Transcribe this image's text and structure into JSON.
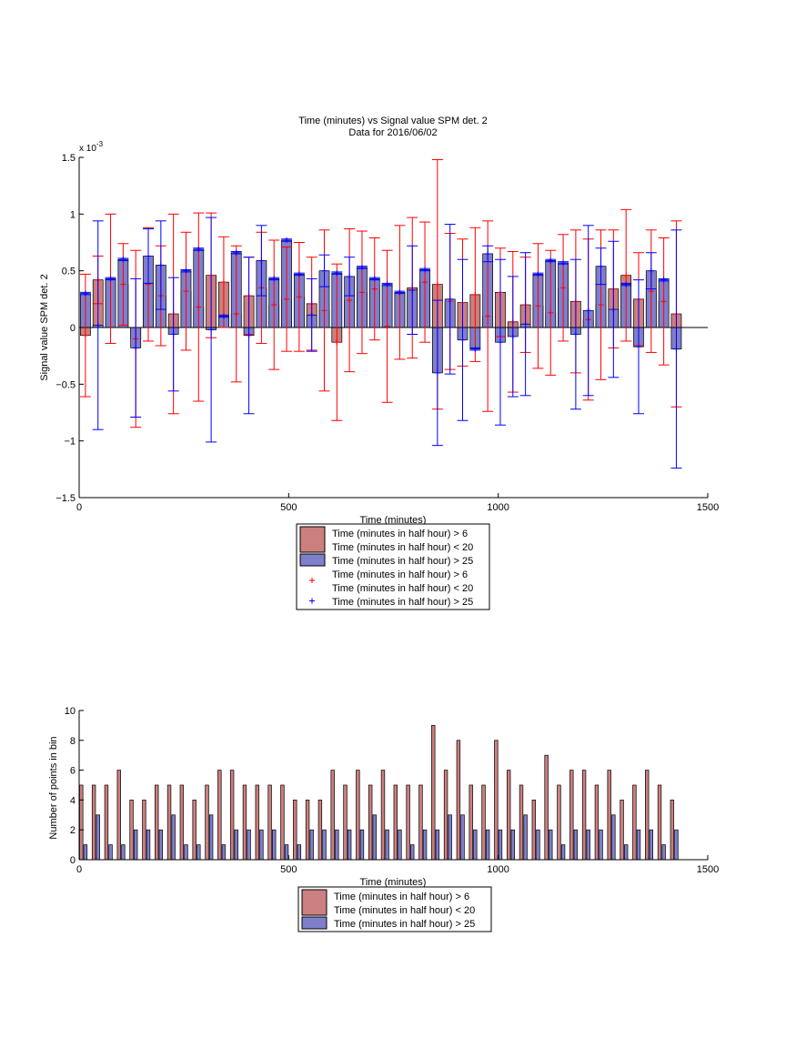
{
  "chart_data": [
    {
      "type": "bar",
      "title": "Time (minutes) vs Signal value SPM det. 2",
      "subtitle": "Data for 2016/06/02",
      "xlabel": "Time (minutes)",
      "ylabel": "Signal value SPM det. 2",
      "exponent_label": "x 10",
      "exponent_power": "-3",
      "xlim": [
        0,
        1500
      ],
      "ylim": [
        -0.0015,
        0.0015
      ],
      "xticks": [
        0,
        500,
        1000,
        1500
      ],
      "xtick_labels": [
        "0",
        "500",
        "1000",
        "1500"
      ],
      "yticks": [
        -0.0015,
        -0.001,
        -0.0005,
        0,
        0.0005,
        0.001,
        0.0015
      ],
      "ytick_labels": [
        "−1.5",
        "−1",
        "−0.5",
        "0",
        "0.5",
        "1",
        "1.5"
      ],
      "grid": false,
      "legend_placement": "below-center",
      "legend": [
        {
          "type": "patch",
          "series": 0,
          "text": [
            "Time (minutes in half hour) > 6",
            "Time (minutes in half hour) < 20"
          ]
        },
        {
          "type": "patch",
          "series": 1,
          "text": [
            "Time (minutes in half hour) > 25"
          ]
        },
        {
          "type": "marker",
          "series": 0,
          "text": [
            "Time (minutes in half hour) > 6",
            "Time (minutes in half hour) < 20"
          ]
        },
        {
          "type": "marker",
          "series": 1,
          "text": [
            "Time (minutes in half hour) > 25"
          ]
        }
      ],
      "x_red": [
        15,
        45,
        75,
        105,
        135,
        165,
        195,
        225,
        255,
        285,
        315,
        345,
        375,
        405,
        435,
        465,
        495,
        525,
        555,
        585,
        615,
        645,
        675,
        705,
        735,
        765,
        795,
        825,
        855,
        885,
        915,
        945,
        975,
        1005,
        1035,
        1065,
        1095,
        1125,
        1155,
        1185,
        1215,
        1245,
        1275,
        1305,
        1335,
        1365,
        1395,
        1425
      ],
      "x_blue": [
        15,
        45,
        75,
        105,
        135,
        165,
        195,
        225,
        255,
        285,
        315,
        345,
        375,
        405,
        435,
        465,
        495,
        525,
        555,
        585,
        615,
        645,
        675,
        705,
        735,
        765,
        795,
        825,
        855,
        885,
        915,
        945,
        975,
        1005,
        1035,
        1065,
        1095,
        1125,
        1155,
        1185,
        1215,
        1245,
        1275,
        1305,
        1335,
        1365,
        1395,
        1425
      ],
      "series": [
        {
          "color": "#cc7f7f",
          "marker_color": "#ff0000",
          "values": [
            -7e-05,
            0.00042,
            0.00043,
            0.00038,
            -0.0001,
            0.00038,
            0.00028,
            0.00012,
            0.00032,
            0.00018,
            0.00046,
            0.0004,
            0.00012,
            0.00028,
            0.00035,
            0.0002,
            0.00025,
            0.00027,
            0.00021,
            0.00015,
            -0.00013,
            0.00024,
            0.00031,
            0.00034,
            1e-05,
            0.00031,
            0.00035,
            0.0004,
            0.00038,
            0.00023,
            0.00022,
            0.00029,
            0.0001,
            0.00031,
            5e-05,
            0.0002,
            0.00019,
            0.00013,
            0.00035,
            0.00023,
            7e-05,
            0.0002,
            0.00034,
            0.00046,
            0.00025,
            0.00032,
            0.00023,
            0.00012
          ],
          "err": [
            0.00054,
            0.00021,
            0.00057,
            0.00036,
            0.00078,
            0.0005,
            0.00044,
            0.00088,
            0.00052,
            0.00083,
            0.00055,
            0.0004,
            0.0006,
            0.00034,
            0.00049,
            0.00057,
            0.00046,
            0.00048,
            0.00041,
            0.00071,
            0.00069,
            0.00063,
            0.00054,
            0.00045,
            0.00067,
            0.00059,
            0.00062,
            0.00053,
            0.0011,
            0.0006,
            0.00056,
            0.00059,
            0.00084,
            0.00039,
            0.00062,
            0.00042,
            0.00055,
            0.00055,
            0.00047,
            0.00063,
            0.00071,
            0.00066,
            0.00052,
            0.00058,
            0.00041,
            0.00054,
            0.00056,
            0.00082
          ]
        },
        {
          "color": "#7f7fcc",
          "marker_color": "#0000ff",
          "values": [
            0.0003,
            2e-05,
            0.00043,
            0.0006,
            -0.00018,
            0.00063,
            0.00055,
            -6e-05,
            0.0005,
            0.00069,
            -2e-05,
            0.0001,
            0.00066,
            -7e-05,
            0.00059,
            0.00043,
            0.00077,
            0.00047,
            0.00011,
            0.0005,
            0.00048,
            0.00045,
            0.00053,
            0.00043,
            0.00038,
            0.00031,
            0.00033,
            0.00051,
            -0.0004,
            0.00025,
            -0.00011,
            -0.00019,
            0.00065,
            -0.00013,
            -8e-05,
            3e-05,
            0.00047,
            0.00059,
            0.00057,
            -6e-05,
            0.00015,
            0.00054,
            0.00016,
            0.00038,
            -0.00017,
            0.0005,
            0.00042,
            -0.00019
          ],
          "err": [
            1e-05,
            0.00092,
            1e-05,
            1e-05,
            0.00061,
            0.00024,
            0.00039,
            0.0005,
            1e-05,
            1e-05,
            0.00099,
            1e-05,
            1e-05,
            0.00069,
            0.00031,
            1e-05,
            1e-05,
            1e-05,
            0.00032,
            0.00014,
            1e-05,
            0.00017,
            1e-05,
            1e-05,
            1e-05,
            1e-05,
            0.00039,
            1e-05,
            0.00064,
            0.00066,
            0.00071,
            1e-05,
            7e-05,
            0.00073,
            0.00053,
            0.00063,
            1e-05,
            1e-05,
            1e-05,
            0.00066,
            0.00075,
            0.00016,
            0.0006,
            1e-05,
            0.00059,
            0.00016,
            1e-05,
            0.00105
          ]
        }
      ]
    },
    {
      "type": "bar",
      "xlabel": "Time (minutes)",
      "ylabel": "Number of points in bin",
      "xlim": [
        0,
        1500
      ],
      "ylim": [
        0,
        10
      ],
      "xticks": [
        0,
        500,
        1000,
        1500
      ],
      "xtick_labels": [
        "0",
        "500",
        "1000",
        "1500"
      ],
      "yticks": [
        0,
        2,
        4,
        6,
        8,
        10
      ],
      "ytick_labels": [
        "0",
        "2",
        "4",
        "6",
        "8",
        "10"
      ],
      "grid": false,
      "legend_placement": "below-center",
      "legend": [
        {
          "type": "patch",
          "series": 0,
          "text": [
            "Time (minutes in half hour) > 6",
            "Time (minutes in half hour) < 20"
          ]
        },
        {
          "type": "patch",
          "series": 1,
          "text": [
            "Time (minutes in half hour) > 25"
          ]
        }
      ],
      "x_red": [
        5,
        35,
        65,
        95,
        125,
        155,
        185,
        215,
        245,
        275,
        305,
        335,
        365,
        395,
        425,
        455,
        485,
        515,
        545,
        575,
        605,
        635,
        665,
        695,
        725,
        755,
        785,
        815,
        845,
        875,
        905,
        935,
        965,
        995,
        1025,
        1055,
        1085,
        1115,
        1145,
        1175,
        1205,
        1235,
        1265,
        1295,
        1325,
        1355,
        1385,
        1415
      ],
      "x_blue": [
        15,
        45,
        75,
        105,
        135,
        165,
        195,
        225,
        255,
        285,
        315,
        345,
        375,
        405,
        435,
        465,
        495,
        525,
        555,
        585,
        615,
        645,
        675,
        705,
        735,
        765,
        795,
        825,
        855,
        885,
        915,
        945,
        975,
        1005,
        1035,
        1065,
        1095,
        1125,
        1155,
        1185,
        1215,
        1245,
        1275,
        1305,
        1335,
        1365,
        1395,
        1425
      ],
      "series": [
        {
          "color": "#cc7f7f",
          "values": [
            5,
            5,
            5,
            6,
            4,
            4,
            5,
            5,
            5,
            4,
            5,
            6,
            6,
            5,
            5,
            5,
            5,
            4,
            4,
            4,
            6,
            5,
            6,
            5,
            6,
            5,
            5,
            5,
            9,
            6,
            8,
            5,
            5,
            8,
            6,
            5,
            4,
            7,
            5,
            6,
            6,
            5,
            6,
            4,
            5,
            6,
            5,
            4
          ]
        },
        {
          "color": "#7f7fcc",
          "values": [
            1,
            3,
            1,
            1,
            2,
            2,
            2,
            3,
            1,
            1,
            3,
            1,
            2,
            2,
            2,
            2,
            1,
            1,
            2,
            2,
            2,
            2,
            2,
            3,
            2,
            2,
            1,
            2,
            2,
            3,
            3,
            2,
            2,
            2,
            2,
            3,
            2,
            2,
            1,
            2,
            2,
            2,
            3,
            1,
            2,
            2,
            1,
            2
          ]
        }
      ]
    }
  ]
}
